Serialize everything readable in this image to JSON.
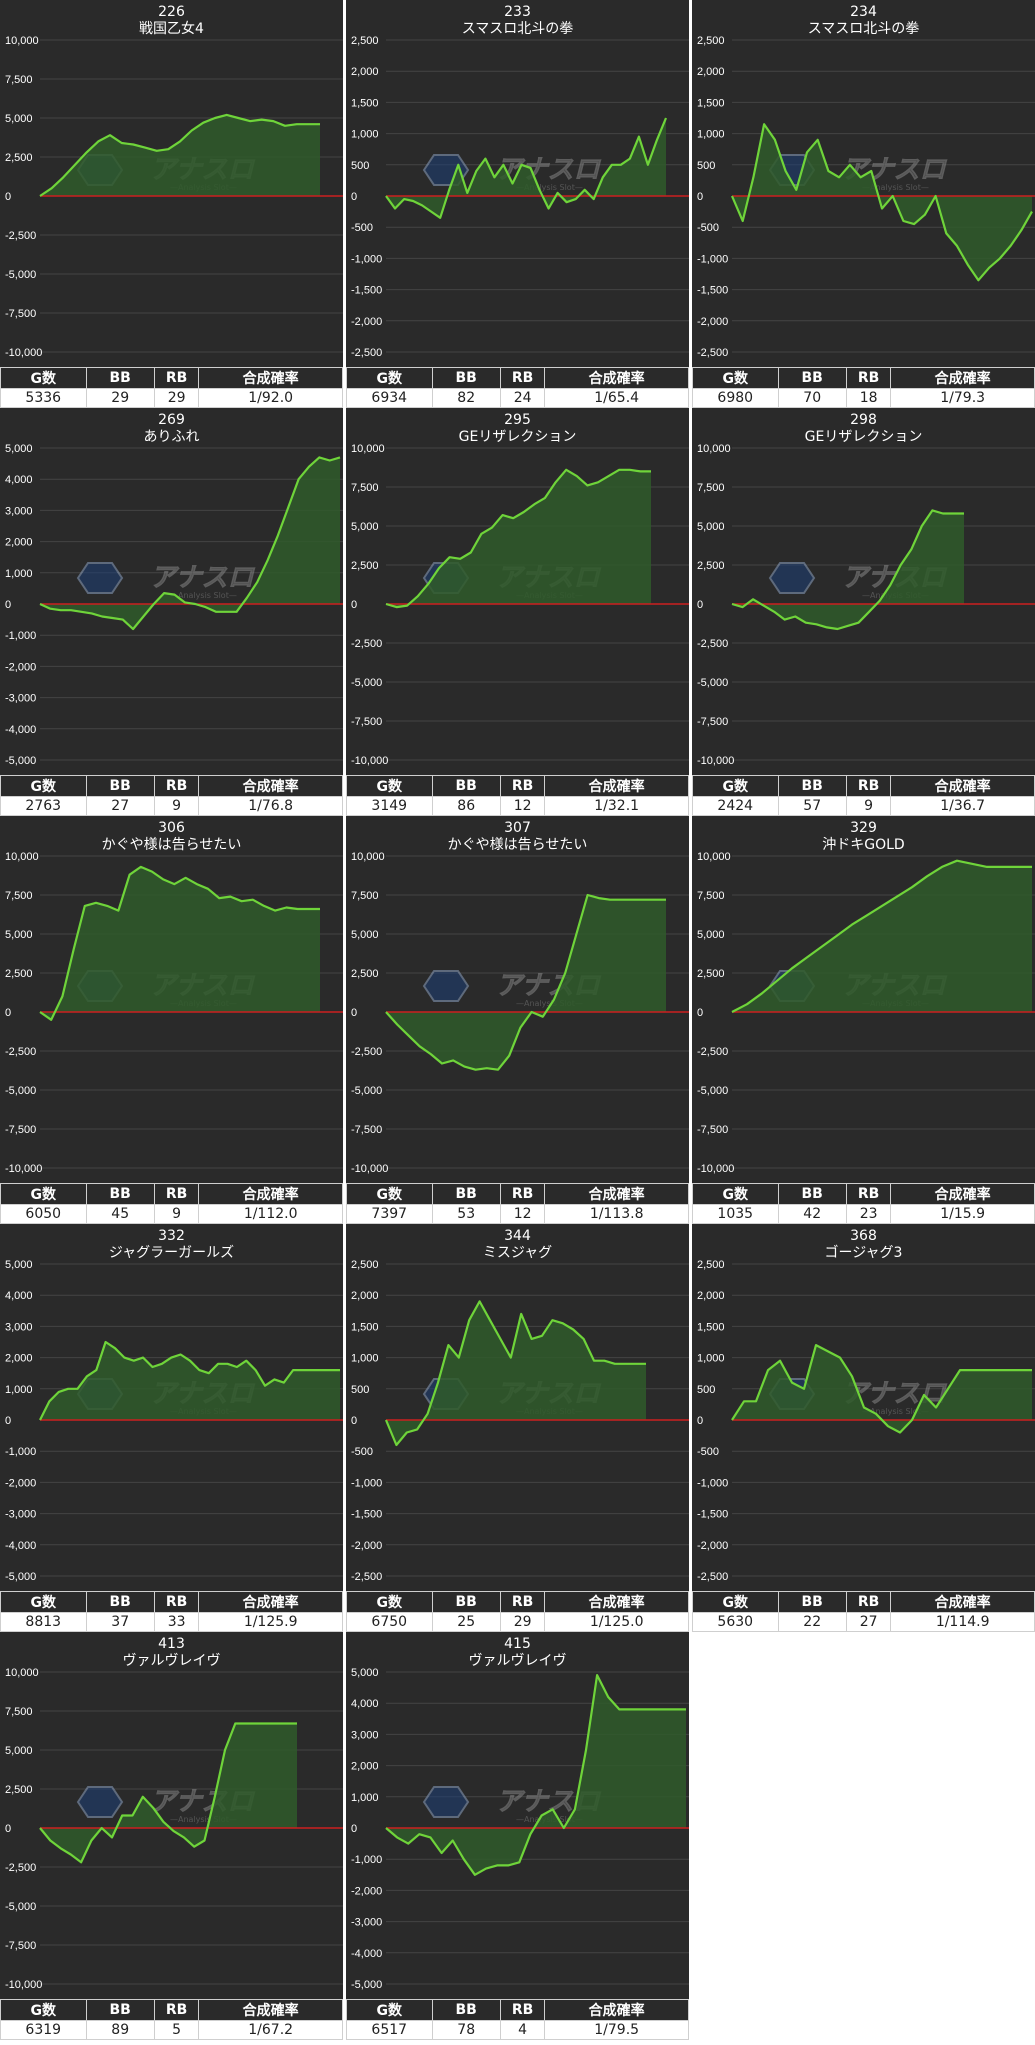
{
  "stat_headers": {
    "g": "G数",
    "bb": "BB",
    "rb": "RB",
    "rate": "合成確率"
  },
  "colors": {
    "background": "#2a2a2a",
    "line": "#6fd43a",
    "fill": "#2f5a2a",
    "zero_line": "#cc1f1f",
    "grid": "#444444",
    "tick_text": "#ffffff"
  },
  "watermark": {
    "brand": "アナスロ",
    "sub": "—Analysis Slot—"
  },
  "chart_data": [
    {
      "type": "area",
      "number": "226",
      "title": "戦国乙女4",
      "ylim": [
        -10000,
        10000
      ],
      "ticks": [
        "10,000",
        "7,500",
        "5,000",
        "2,500",
        "0",
        "-2,500",
        "-5,000",
        "-7,500",
        "-10,000"
      ],
      "x": [
        0,
        1,
        2,
        3,
        4,
        5,
        6,
        7,
        8,
        9,
        10,
        11,
        12,
        13,
        14,
        15,
        16,
        17,
        18,
        19,
        20,
        21,
        22,
        23,
        24
      ],
      "values": [
        0,
        500,
        1200,
        2000,
        2800,
        3500,
        3900,
        3400,
        3300,
        3100,
        2900,
        3000,
        3500,
        4200,
        4700,
        5000,
        5200,
        5000,
        4800,
        4900,
        4800,
        4500,
        4600,
        4600,
        4600
      ],
      "stats": {
        "g": "5336",
        "bb": "29",
        "rb": "29",
        "rate": "1/92.0"
      }
    },
    {
      "type": "area",
      "number": "233",
      "title": "スマスロ北斗の拳",
      "ylim": [
        -2500,
        2500
      ],
      "ticks": [
        "2,500",
        "2,000",
        "1,500",
        "1,000",
        "500",
        "0",
        "-500",
        "-1,000",
        "-1,500",
        "-2,000",
        "-2,500"
      ],
      "x": [
        0,
        1,
        2,
        3,
        4,
        5,
        6,
        7,
        8,
        9,
        10,
        11,
        12,
        13,
        14,
        15,
        16,
        17,
        18,
        19,
        20,
        21,
        22,
        23,
        24,
        25,
        26,
        27,
        28,
        29,
        30,
        31
      ],
      "values": [
        0,
        -200,
        -50,
        -80,
        -150,
        -250,
        -350,
        100,
        500,
        50,
        400,
        600,
        300,
        500,
        200,
        500,
        450,
        100,
        -200,
        50,
        -100,
        -50,
        100,
        -50,
        300,
        500,
        500,
        600,
        950,
        500,
        900,
        1250
      ],
      "stats": {
        "g": "6934",
        "bb": "82",
        "rb": "24",
        "rate": "1/65.4"
      }
    },
    {
      "type": "area",
      "number": "234",
      "title": "スマスロ北斗の拳",
      "ylim": [
        -2500,
        2500
      ],
      "ticks": [
        "2,500",
        "2,000",
        "1,500",
        "1,000",
        "500",
        "0",
        "-500",
        "-1,000",
        "-1,500",
        "-2,000",
        "-2,500"
      ],
      "x": [
        0,
        1,
        2,
        3,
        4,
        5,
        6,
        7,
        8,
        9,
        10,
        11,
        12,
        13,
        14,
        15,
        16,
        17,
        18,
        19,
        20,
        21,
        22,
        23,
        24,
        25,
        26,
        27,
        28
      ],
      "values": [
        0,
        -400,
        300,
        1150,
        900,
        400,
        100,
        700,
        900,
        400,
        300,
        500,
        300,
        400,
        -200,
        0,
        -400,
        -450,
        -300,
        0,
        -600,
        -800,
        -1100,
        -1350,
        -1150,
        -1000,
        -800,
        -550,
        -250
      ],
      "stats": {
        "g": "6980",
        "bb": "70",
        "rb": "18",
        "rate": "1/79.3"
      }
    },
    {
      "type": "area",
      "number": "269",
      "title": "ありふれ",
      "ylim": [
        -5000,
        5000
      ],
      "ticks": [
        "5,000",
        "4,000",
        "3,000",
        "2,000",
        "1,000",
        "0",
        "-1,000",
        "-2,000",
        "-3,000",
        "-4,000",
        "-5,000"
      ],
      "x": [
        0,
        1,
        2,
        3,
        4,
        5,
        6,
        7,
        8,
        9,
        10,
        11,
        12,
        13,
        14,
        15,
        16,
        17,
        18,
        19,
        20,
        21,
        22,
        23,
        24,
        25,
        26,
        27,
        28,
        29
      ],
      "values": [
        0,
        -150,
        -200,
        -200,
        -250,
        -300,
        -400,
        -450,
        -500,
        -800,
        -400,
        0,
        350,
        300,
        50,
        0,
        -100,
        -250,
        -250,
        -250,
        200,
        700,
        1400,
        2200,
        3100,
        4000,
        4400,
        4700,
        4600,
        4700
      ],
      "stats": {
        "g": "2763",
        "bb": "27",
        "rb": "9",
        "rate": "1/76.8"
      }
    },
    {
      "type": "area",
      "number": "295",
      "title": "GEリザレクション",
      "ylim": [
        -10000,
        10000
      ],
      "ticks": [
        "10,000",
        "7,500",
        "5,000",
        "2,500",
        "0",
        "-2,500",
        "-5,000",
        "-7,500",
        "-10,000"
      ],
      "x": [
        0,
        1,
        2,
        3,
        4,
        5,
        6,
        7,
        8,
        9,
        10,
        11,
        12,
        13,
        14,
        15,
        16,
        17,
        18,
        19,
        20,
        21,
        22,
        23,
        24,
        25
      ],
      "values": [
        0,
        -200,
        -100,
        500,
        1300,
        2300,
        3000,
        2900,
        3300,
        4500,
        4900,
        5700,
        5500,
        5900,
        6400,
        6800,
        7800,
        8600,
        8200,
        7600,
        7800,
        8200,
        8600,
        8600,
        8500,
        8500
      ],
      "stats": {
        "g": "3149",
        "bb": "86",
        "rb": "12",
        "rate": "1/32.1"
      }
    },
    {
      "type": "area",
      "number": "298",
      "title": "GEリザレクション",
      "ylim": [
        -10000,
        10000
      ],
      "ticks": [
        "10,000",
        "7,500",
        "5,000",
        "2,500",
        "0",
        "-2,500",
        "-5,000",
        "-7,500",
        "-10,000"
      ],
      "x": [
        0,
        1,
        2,
        3,
        4,
        5,
        6,
        7,
        8,
        9,
        10,
        11,
        12,
        13,
        14,
        15,
        16,
        17,
        18,
        19,
        20,
        21,
        22
      ],
      "values": [
        0,
        -200,
        300,
        -100,
        -500,
        -1000,
        -800,
        -1200,
        -1300,
        -1500,
        -1600,
        -1400,
        -1200,
        -500,
        200,
        1200,
        2500,
        3500,
        5000,
        6000,
        5800,
        5800,
        5800
      ],
      "stats": {
        "g": "2424",
        "bb": "57",
        "rb": "9",
        "rate": "1/36.7"
      }
    },
    {
      "type": "area",
      "number": "306",
      "title": "かぐや様は告らせたい",
      "ylim": [
        -10000,
        10000
      ],
      "ticks": [
        "10,000",
        "7,500",
        "5,000",
        "2,500",
        "0",
        "-2,500",
        "-5,000",
        "-7,500",
        "-10,000"
      ],
      "x": [
        0,
        1,
        2,
        3,
        4,
        5,
        6,
        7,
        8,
        9,
        10,
        11,
        12,
        13,
        14,
        15,
        16,
        17,
        18,
        19,
        20,
        21,
        22,
        23,
        24,
        25
      ],
      "values": [
        0,
        -500,
        1000,
        4000,
        6800,
        7000,
        6800,
        6500,
        8800,
        9300,
        9000,
        8500,
        8200,
        8600,
        8200,
        7900,
        7300,
        7400,
        7100,
        7200,
        6800,
        6500,
        6700,
        6600,
        6600,
        6600
      ],
      "stats": {
        "g": "6050",
        "bb": "45",
        "rb": "9",
        "rate": "1/112.0"
      }
    },
    {
      "type": "area",
      "number": "307",
      "title": "かぐや様は告らせたい",
      "ylim": [
        -10000,
        10000
      ],
      "ticks": [
        "10,000",
        "7,500",
        "5,000",
        "2,500",
        "0",
        "-2,500",
        "-5,000",
        "-7,500",
        "-10,000"
      ],
      "x": [
        0,
        1,
        2,
        3,
        4,
        5,
        6,
        7,
        8,
        9,
        10,
        11,
        12,
        13,
        14,
        15,
        16,
        17,
        18,
        19,
        20,
        21,
        22,
        23,
        24,
        25
      ],
      "values": [
        0,
        -800,
        -1500,
        -2200,
        -2700,
        -3300,
        -3100,
        -3500,
        -3700,
        -3600,
        -3700,
        -2800,
        -1000,
        0,
        -300,
        800,
        2500,
        5000,
        7500,
        7300,
        7200,
        7200,
        7200,
        7200,
        7200,
        7200
      ],
      "stats": {
        "g": "7397",
        "bb": "53",
        "rb": "12",
        "rate": "1/113.8"
      }
    },
    {
      "type": "area",
      "number": "329",
      "title": "沖ドキGOLD",
      "ylim": [
        -10000,
        10000
      ],
      "ticks": [
        "10,000",
        "7,500",
        "5,000",
        "2,500",
        "0",
        "-2,500",
        "-5,000",
        "-7,500",
        "-10,000"
      ],
      "x": [
        0,
        1,
        2,
        3,
        4,
        5,
        6,
        7,
        8,
        9,
        10,
        11,
        12,
        13,
        14,
        15,
        16,
        17,
        18,
        19,
        20
      ],
      "values": [
        0,
        500,
        1200,
        2000,
        2800,
        3500,
        4200,
        4900,
        5600,
        6200,
        6800,
        7400,
        8000,
        8700,
        9300,
        9700,
        9500,
        9300,
        9300,
        9300,
        9300
      ],
      "stats": {
        "g": "1035",
        "bb": "42",
        "rb": "23",
        "rate": "1/15.9"
      }
    },
    {
      "type": "area",
      "number": "332",
      "title": "ジャグラーガールズ",
      "ylim": [
        -5000,
        5000
      ],
      "ticks": [
        "5,000",
        "4,000",
        "3,000",
        "2,000",
        "1,000",
        "0",
        "-1,000",
        "-2,000",
        "-3,000",
        "-4,000",
        "-5,000"
      ],
      "x": [
        0,
        1,
        2,
        3,
        4,
        5,
        6,
        7,
        8,
        9,
        10,
        11,
        12,
        13,
        14,
        15,
        16,
        17,
        18,
        19,
        20,
        21,
        22,
        23,
        24,
        25,
        26,
        27,
        28,
        29,
        30,
        31,
        32
      ],
      "values": [
        0,
        600,
        900,
        1000,
        1000,
        1400,
        1600,
        2500,
        2300,
        2000,
        1900,
        2000,
        1700,
        1800,
        2000,
        2100,
        1900,
        1600,
        1500,
        1800,
        1800,
        1700,
        1900,
        1600,
        1100,
        1300,
        1200,
        1600,
        1600,
        1600,
        1600,
        1600,
        1600
      ],
      "stats": {
        "g": "8813",
        "bb": "37",
        "rb": "33",
        "rate": "1/125.9"
      }
    },
    {
      "type": "area",
      "number": "344",
      "title": "ミスジャグ",
      "ylim": [
        -2500,
        2500
      ],
      "ticks": [
        "2,500",
        "2,000",
        "1,500",
        "1,000",
        "500",
        "0",
        "-500",
        "-1,000",
        "-1,500",
        "-2,000",
        "-2,500"
      ],
      "x": [
        0,
        1,
        2,
        3,
        4,
        5,
        6,
        7,
        8,
        9,
        10,
        11,
        12,
        13,
        14,
        15,
        16,
        17,
        18,
        19,
        20,
        21,
        22,
        23,
        24,
        25
      ],
      "values": [
        0,
        -400,
        -200,
        -150,
        100,
        600,
        1200,
        1000,
        1600,
        1900,
        1600,
        1300,
        1000,
        1700,
        1300,
        1350,
        1600,
        1550,
        1450,
        1300,
        950,
        950,
        900,
        900,
        900,
        900
      ],
      "stats": {
        "g": "6750",
        "bb": "25",
        "rb": "29",
        "rate": "1/125.0"
      }
    },
    {
      "type": "area",
      "number": "368",
      "title": "ゴージャグ3",
      "ylim": [
        -2500,
        2500
      ],
      "ticks": [
        "2,500",
        "2,000",
        "1,500",
        "1,000",
        "500",
        "0",
        "-500",
        "-1,000",
        "-1,500",
        "-2,000",
        "-2,500"
      ],
      "x": [
        0,
        1,
        2,
        3,
        4,
        5,
        6,
        7,
        8,
        9,
        10,
        11,
        12,
        13,
        14,
        15,
        16,
        17,
        18,
        19,
        20,
        21,
        22,
        23,
        24,
        25
      ],
      "values": [
        0,
        300,
        300,
        800,
        950,
        600,
        500,
        1200,
        1100,
        1000,
        700,
        200,
        100,
        -100,
        -200,
        0,
        400,
        200,
        500,
        800,
        800,
        800,
        800,
        800,
        800,
        800
      ],
      "stats": {
        "g": "5630",
        "bb": "22",
        "rb": "27",
        "rate": "1/114.9"
      }
    },
    {
      "type": "area",
      "number": "413",
      "title": "ヴァルヴレイヴ",
      "ylim": [
        -10000,
        10000
      ],
      "ticks": [
        "10,000",
        "7,500",
        "5,000",
        "2,500",
        "0",
        "-2,500",
        "-5,000",
        "-7,500",
        "-10,000"
      ],
      "x": [
        0,
        1,
        2,
        3,
        4,
        5,
        6,
        7,
        8,
        9,
        10,
        11,
        12,
        13,
        14,
        15,
        16,
        17,
        18,
        19,
        20,
        21,
        22,
        23,
        24,
        25
      ],
      "values": [
        0,
        -800,
        -1300,
        -1700,
        -2200,
        -800,
        0,
        -600,
        800,
        800,
        2000,
        1300,
        400,
        -200,
        -600,
        -1200,
        -800,
        2000,
        5000,
        6700,
        6700,
        6700,
        6700,
        6700,
        6700,
        6700
      ],
      "stats": {
        "g": "6319",
        "bb": "89",
        "rb": "5",
        "rate": "1/67.2"
      }
    },
    {
      "type": "area",
      "number": "415",
      "title": "ヴァルヴレイヴ",
      "ylim": [
        -5000,
        5000
      ],
      "ticks": [
        "5,000",
        "4,000",
        "3,000",
        "2,000",
        "1,000",
        "0",
        "-1,000",
        "-2,000",
        "-3,000",
        "-4,000",
        "-5,000"
      ],
      "x": [
        0,
        1,
        2,
        3,
        4,
        5,
        6,
        7,
        8,
        9,
        10,
        11,
        12,
        13,
        14,
        15,
        16,
        17,
        18,
        19,
        20,
        21,
        22,
        23,
        24,
        25,
        26,
        27
      ],
      "values": [
        0,
        -300,
        -500,
        -200,
        -300,
        -800,
        -400,
        -1000,
        -1500,
        -1300,
        -1200,
        -1200,
        -1100,
        -200,
        400,
        600,
        0,
        600,
        2500,
        4900,
        4200,
        3800,
        3800,
        3800,
        3800,
        3800,
        3800,
        3800
      ],
      "stats": {
        "g": "6517",
        "bb": "78",
        "rb": "4",
        "rate": "1/79.5"
      }
    }
  ]
}
